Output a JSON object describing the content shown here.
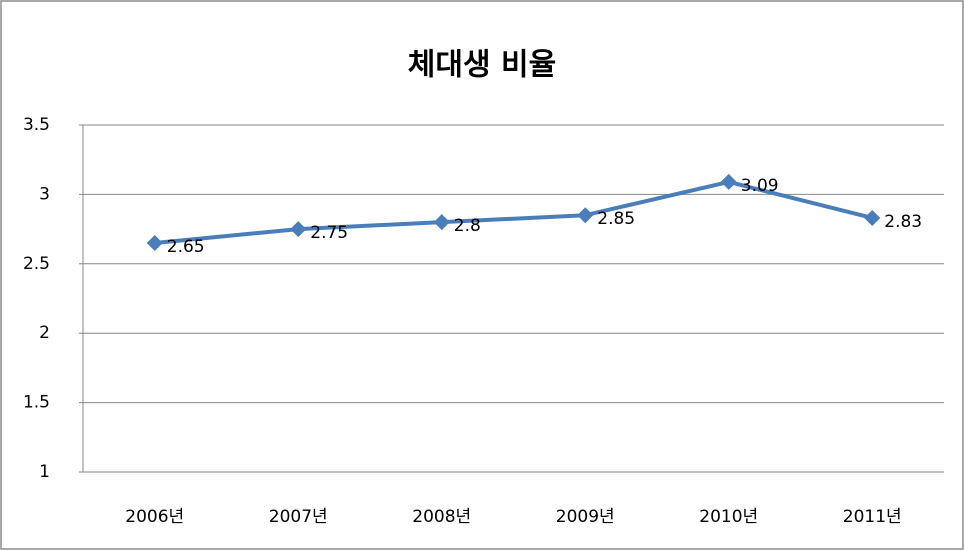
{
  "chart_data": {
    "type": "line",
    "title": "체대생 비율",
    "categories": [
      "2006년",
      "2007년",
      "2008년",
      "2009년",
      "2010년",
      "2011년"
    ],
    "series": [
      {
        "name": "체대생 비율",
        "color": "#4a7ebb",
        "values": [
          2.65,
          2.75,
          2.8,
          2.85,
          3.09,
          2.83
        ]
      }
    ],
    "ylim": [
      1,
      3.5
    ],
    "yticks": [
      1,
      1.5,
      2,
      2.5,
      3,
      3.5
    ],
    "grid": true,
    "legend": false,
    "data_labels": true
  }
}
